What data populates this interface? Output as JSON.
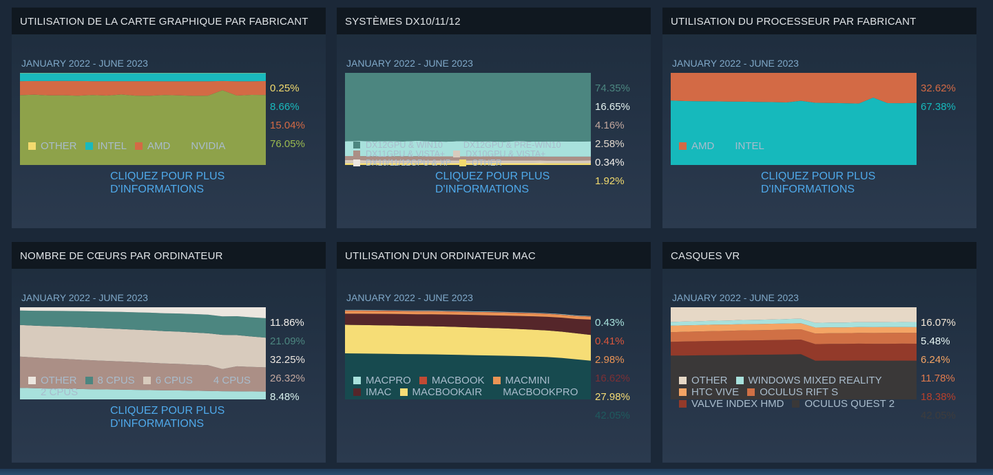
{
  "more_info_label": "CLIQUEZ POUR PLUS D'INFORMATIONS",
  "charts": [
    {
      "title": "UTILISATION DE LA CARTE GRAPHIQUE PAR FABRICANT",
      "subtitle": "JANUARY 2022 - JUNE 2023",
      "has_link": true,
      "legend_style": "normal",
      "chart_data": {
        "type": "area",
        "stacked": true,
        "period": "JANUARY 2022 - JUNE 2023",
        "series": [
          {
            "name": "NVIDIA",
            "color": "#8ea24a",
            "values": [
              75.8,
              76.3,
              75.6,
              75.7,
              75.2,
              75.9,
              75.4,
              76.5,
              75.3,
              75.2,
              75.9,
              75.5,
              75.1,
              75.3,
              81.2,
              75.4,
              76.1,
              76.05
            ]
          },
          {
            "name": "AMD",
            "color": "#d36a45",
            "values": [
              15.2,
              14.8,
              15.5,
              15.5,
              15.9,
              15.1,
              15.6,
              14.5,
              15.7,
              15.8,
              15.0,
              15.4,
              15.8,
              15.6,
              9.9,
              15.5,
              14.8,
              15.04
            ]
          },
          {
            "name": "INTEL",
            "color": "#1ab9bd",
            "values": [
              8.7,
              8.6,
              8.6,
              8.5,
              8.6,
              8.7,
              8.7,
              8.7,
              8.7,
              8.7,
              8.8,
              8.8,
              8.8,
              8.8,
              8.6,
              8.8,
              8.8,
              8.66
            ]
          },
          {
            "name": "OTHER",
            "color": "#f2da6e",
            "values": [
              0.3,
              0.3,
              0.3,
              0.3,
              0.3,
              0.3,
              0.3,
              0.3,
              0.3,
              0.3,
              0.3,
              0.3,
              0.3,
              0.3,
              0.3,
              0.3,
              0.3,
              0.25
            ]
          }
        ],
        "latest": [
          {
            "label": "0.25%",
            "color": "#f2da6e"
          },
          {
            "label": "8.66%",
            "color": "#1ab9bd"
          },
          {
            "label": "15.04%",
            "color": "#d36a45"
          },
          {
            "label": "76.05%",
            "color": "#9cba50"
          }
        ],
        "legend": [
          "OTHER",
          "INTEL",
          "AMD",
          "NVIDIA"
        ]
      }
    },
    {
      "title": "SYSTÈMES DX10/11/12",
      "subtitle": "JANUARY 2022 - JUNE 2023",
      "has_link": true,
      "legend_style": "small",
      "chart_data": {
        "type": "area",
        "stacked": true,
        "period": "JANUARY 2022 - JUNE 2023",
        "series": [
          {
            "name": "OTHER",
            "color": "#f2da6e",
            "values": [
              1.9,
              1.9,
              1.9,
              1.9,
              1.9,
              1.9,
              1.9,
              1.9,
              1.9,
              1.9,
              1.9,
              1.9,
              1.9,
              1.9,
              1.9,
              1.9,
              1.9,
              1.92
            ]
          },
          {
            "name": "DX10/11/12GPU & XP",
            "color": "#ece6df",
            "values": [
              0.4,
              0.4,
              0.4,
              0.4,
              0.4,
              0.4,
              0.4,
              0.4,
              0.4,
              0.4,
              0.4,
              0.4,
              0.4,
              0.4,
              0.3,
              0.3,
              0.3,
              0.34
            ]
          },
          {
            "name": "DX10GPU & VISTA+",
            "color": "#d8cbbd",
            "values": [
              2.9,
              2.9,
              2.8,
              2.8,
              2.8,
              2.8,
              2.7,
              2.7,
              2.7,
              2.7,
              2.7,
              2.6,
              2.6,
              2.6,
              2.6,
              2.6,
              2.6,
              2.58
            ]
          },
          {
            "name": "DX11GPU & VISTA+",
            "color": "#ab8f86",
            "values": [
              4.5,
              4.5,
              4.4,
              4.4,
              4.4,
              4.4,
              4.3,
              4.3,
              4.3,
              4.3,
              4.3,
              4.2,
              4.2,
              4.2,
              4.2,
              4.2,
              4.2,
              4.16
            ]
          },
          {
            "name": "DX12GPU & PRE-WIN10",
            "color": "#a8e1dc",
            "values": [
              16.0,
              16.4,
              16.2,
              16.5,
              16.1,
              16.7,
              16.3,
              16.0,
              16.6,
              16.2,
              16.4,
              16.1,
              16.8,
              16.3,
              16.5,
              16.6,
              16.4,
              16.65
            ]
          },
          {
            "name": "DX12GPU & WIN10",
            "color": "#4c8680",
            "values": [
              74.3,
              73.9,
              74.3,
              74.0,
              74.4,
              73.8,
              74.4,
              74.7,
              74.1,
              74.5,
              74.3,
              74.8,
              74.1,
              74.6,
              74.5,
              74.4,
              74.6,
              74.35
            ]
          }
        ],
        "latest": [
          {
            "label": "74.35%",
            "color": "#4c8680"
          },
          {
            "label": "16.65%",
            "color": "#e3f1ee"
          },
          {
            "label": "4.16%",
            "color": "#c2a79e"
          },
          {
            "label": "2.58%",
            "color": "#e2d8cd"
          },
          {
            "label": "0.34%",
            "color": "#f2efea"
          },
          {
            "label": "1.92%",
            "color": "#f2da6e"
          }
        ],
        "legend": [
          "DX12GPU & WIN10",
          "DX12GPU & PRE-WIN10",
          "DX11GPU & VISTA+",
          "DX10GPU & VISTA+",
          "DX10/11/12GPU & XP",
          "OTHER"
        ]
      }
    },
    {
      "title": "UTILISATION DU PROCESSEUR PAR FABRICANT",
      "subtitle": "JANUARY 2022 - JUNE 2023",
      "has_link": true,
      "legend_style": "normal",
      "chart_data": {
        "type": "area",
        "stacked": true,
        "period": "JANUARY 2022 - JUNE 2023",
        "series": [
          {
            "name": "INTEL",
            "color": "#16b9bc",
            "values": [
              69.9,
              69.4,
              69.2,
              69.1,
              68.8,
              68.7,
              68.5,
              68.3,
              67.9,
              69.7,
              67.5,
              67.4,
              67.1,
              66.7,
              73.1,
              67.2,
              67.1,
              67.38
            ]
          },
          {
            "name": "AMD",
            "color": "#d36a45",
            "values": [
              30.1,
              30.6,
              30.8,
              30.9,
              31.2,
              31.3,
              31.5,
              31.7,
              32.1,
              30.3,
              32.5,
              32.6,
              32.9,
              33.3,
              26.9,
              32.8,
              32.9,
              32.62
            ]
          }
        ],
        "latest": [
          {
            "label": "32.62%",
            "color": "#d36a45"
          },
          {
            "label": "67.38%",
            "color": "#16b9bc"
          }
        ],
        "legend": [
          "AMD",
          "INTEL"
        ]
      }
    },
    {
      "title": "NOMBRE DE CŒURS PAR ORDINATEUR",
      "subtitle": "JANUARY 2022 - JUNE 2023",
      "has_link": true,
      "legend_style": "normal",
      "chart_data": {
        "type": "area",
        "stacked": true,
        "period": "JANUARY 2022 - JUNE 2023",
        "series": [
          {
            "name": "2 CPUS",
            "color": "#a8e1dc",
            "values": [
              12.5,
              12.1,
              11.8,
              11.6,
              11.3,
              11.0,
              10.8,
              10.6,
              10.4,
              10.1,
              9.8,
              9.7,
              9.4,
              9.2,
              8.9,
              8.8,
              8.6,
              8.48
            ]
          },
          {
            "name": "4 CPUS",
            "color": "#ab8f86",
            "values": [
              34.0,
              33.4,
              32.8,
              32.4,
              31.9,
              31.5,
              31.0,
              30.6,
              30.2,
              29.6,
              29.2,
              28.8,
              28.3,
              27.9,
              24.0,
              27.1,
              26.7,
              26.32
            ]
          },
          {
            "name": "6 CPUS",
            "color": "#d8cbbd",
            "values": [
              34.3,
              34.6,
              34.9,
              35.0,
              35.2,
              35.2,
              35.3,
              35.2,
              35.1,
              35.3,
              35.1,
              35.0,
              34.9,
              34.6,
              37.2,
              33.9,
              33.0,
              32.25
            ]
          },
          {
            "name": "8 CPUS",
            "color": "#4c8680",
            "values": [
              15.6,
              16.1,
              16.6,
              17.0,
              17.4,
              17.8,
              18.1,
              18.5,
              18.8,
              19.1,
              19.4,
              19.7,
              20.0,
              20.3,
              20.0,
              20.5,
              20.8,
              21.09
            ]
          },
          {
            "name": "OTHER",
            "color": "#ece6df",
            "values": [
              3.6,
              3.8,
              3.9,
              4.0,
              4.2,
              4.5,
              4.8,
              5.1,
              5.5,
              5.9,
              6.5,
              6.8,
              7.4,
              8.0,
              9.9,
              9.7,
              10.9,
              11.86
            ]
          }
        ],
        "latest": [
          {
            "label": "11.86%",
            "color": "#f2efea"
          },
          {
            "label": "21.09%",
            "color": "#4c8680"
          },
          {
            "label": "32.25%",
            "color": "#ece6df"
          },
          {
            "label": "26.32%",
            "color": "#c2a79e"
          },
          {
            "label": "8.48%",
            "color": "#d9f2ee"
          }
        ],
        "legend": [
          "OTHER",
          "8 CPUS",
          "6 CPUS",
          "4 CPUS",
          "2 CPUS"
        ]
      }
    },
    {
      "title": "UTILISATION D'UN ORDINATEUR MAC",
      "subtitle": "JANUARY 2022 - JUNE 2023",
      "has_link": false,
      "legend_style": "normal",
      "chart_data": {
        "type": "area",
        "stacked": true,
        "period": "JANUARY 2022 - JUNE 2023",
        "series": [
          {
            "name": "MACBOOKPRO",
            "color": "#174a4f",
            "values": [
              50.0,
              49.8,
              49.6,
              49.5,
              49.2,
              49.0,
              48.9,
              48.6,
              48.3,
              48.0,
              47.7,
              47.4,
              47.0,
              46.6,
              46.0,
              45.0,
              43.5,
              42.05
            ]
          },
          {
            "name": "MACBOOKAIR",
            "color": "#f6dd76",
            "values": [
              31.0,
              31.0,
              30.9,
              30.8,
              30.7,
              30.6,
              30.5,
              30.4,
              30.2,
              30.0,
              29.8,
              29.6,
              29.4,
              29.1,
              28.8,
              28.5,
              28.2,
              27.98
            ]
          },
          {
            "name": "IMAC",
            "color": "#55262a",
            "values": [
              12.0,
              12.2,
              12.4,
              12.5,
              12.7,
              12.8,
              13.0,
              13.2,
              13.4,
              13.6,
              13.8,
              14.0,
              14.2,
              14.5,
              14.8,
              15.2,
              15.6,
              16.62
            ]
          },
          {
            "name": "MACMINI",
            "color": "#eb9455",
            "values": [
              2.9,
              2.9,
              2.9,
              2.9,
              2.9,
              2.9,
              2.9,
              2.9,
              2.9,
              2.9,
              3.0,
              3.0,
              3.0,
              3.0,
              3.0,
              3.0,
              3.0,
              2.98
            ]
          },
          {
            "name": "MACBOOK",
            "color": "#c14a34",
            "values": [
              0.7,
              0.7,
              0.7,
              0.7,
              0.6,
              0.6,
              0.6,
              0.6,
              0.6,
              0.5,
              0.5,
              0.5,
              0.5,
              0.5,
              0.5,
              0.4,
              0.4,
              0.41
            ]
          },
          {
            "name": "MACPRO",
            "color": "#a8e1dc",
            "values": [
              0.5,
              0.5,
              0.5,
              0.5,
              0.5,
              0.5,
              0.5,
              0.5,
              0.5,
              0.5,
              0.5,
              0.5,
              0.4,
              0.4,
              0.4,
              0.4,
              0.4,
              0.43
            ]
          }
        ],
        "latest": [
          {
            "label": "0.43%",
            "color": "#a8e1dc"
          },
          {
            "label": "0.41%",
            "color": "#d9563c"
          },
          {
            "label": "2.98%",
            "color": "#eb9455"
          },
          {
            "label": "16.62%",
            "color": "#7c3035"
          },
          {
            "label": "27.98%",
            "color": "#f6dd76"
          },
          {
            "label": "42.05%",
            "color": "#1f5a5e"
          }
        ],
        "legend": [
          "MACPRO",
          "MACBOOK",
          "MACMINI",
          "IMAC",
          "MACBOOKAIR",
          "MACBOOKPRO"
        ]
      }
    },
    {
      "title": "CASQUES VR",
      "subtitle": "JANUARY 2022 - JUNE 2023",
      "has_link": false,
      "legend_style": "normal",
      "chart_data": {
        "type": "area",
        "stacked": true,
        "period": "JANUARY 2022 - JUNE 2023",
        "series": [
          {
            "name": "OCULUS QUEST 2",
            "color": "#3a3838",
            "values": [
              47.5,
              47.6,
              47.8,
              48.0,
              48.1,
              48.3,
              48.5,
              48.6,
              48.8,
              49.0,
              42.0,
              42.1,
              42.0,
              42.2,
              42.1,
              42.0,
              42.1,
              42.05
            ]
          },
          {
            "name": "VALVE INDEX HMD",
            "color": "#933a2a",
            "values": [
              15.0,
              15.2,
              15.3,
              15.4,
              15.5,
              15.6,
              15.6,
              15.7,
              15.8,
              15.9,
              18.0,
              18.1,
              18.2,
              18.3,
              18.3,
              18.4,
              18.4,
              18.38
            ]
          },
          {
            "name": "OCULUS RIFT S",
            "color": "#d07045",
            "values": [
              10.5,
              10.6,
              10.7,
              10.8,
              10.9,
              11.0,
              11.0,
              11.1,
              11.2,
              11.2,
              11.5,
              11.6,
              11.6,
              11.7,
              11.7,
              11.8,
              11.8,
              11.78
            ]
          },
          {
            "name": "HTC VIVE",
            "color": "#f4a464",
            "values": [
              7.0,
              7.0,
              6.9,
              6.9,
              6.8,
              6.8,
              6.7,
              6.7,
              6.6,
              6.6,
              6.5,
              6.5,
              6.4,
              6.4,
              6.3,
              6.3,
              6.2,
              6.24
            ]
          },
          {
            "name": "WINDOWS MIXED REALITY",
            "color": "#a8e1dc",
            "values": [
              4.0,
              4.1,
              4.2,
              4.3,
              4.4,
              4.5,
              4.6,
              4.7,
              4.8,
              4.9,
              5.0,
              5.1,
              5.2,
              5.3,
              5.4,
              5.4,
              5.5,
              5.48
            ]
          },
          {
            "name": "OTHER",
            "color": "#e6d8c6",
            "values": [
              16.0,
              15.5,
              15.1,
              14.6,
              14.3,
              13.8,
              13.6,
              13.2,
              12.8,
              12.4,
              17.0,
              16.6,
              16.6,
              16.1,
              16.2,
              16.1,
              16.0,
              16.07
            ]
          }
        ],
        "latest": [
          {
            "label": "16.07%",
            "color": "#f2e6d6"
          },
          {
            "label": "5.48%",
            "color": "#e7f5f3"
          },
          {
            "label": "6.24%",
            "color": "#f4a464"
          },
          {
            "label": "11.78%",
            "color": "#e07a4d"
          },
          {
            "label": "18.38%",
            "color": "#b8402c"
          },
          {
            "label": "42.05%",
            "color": "#3e3c3c"
          }
        ],
        "legend": [
          "OTHER",
          "WINDOWS MIXED REALITY",
          "HTC VIVE",
          "OCULUS RIFT S",
          "VALVE INDEX HMD",
          "OCULUS QUEST 2"
        ]
      }
    }
  ]
}
